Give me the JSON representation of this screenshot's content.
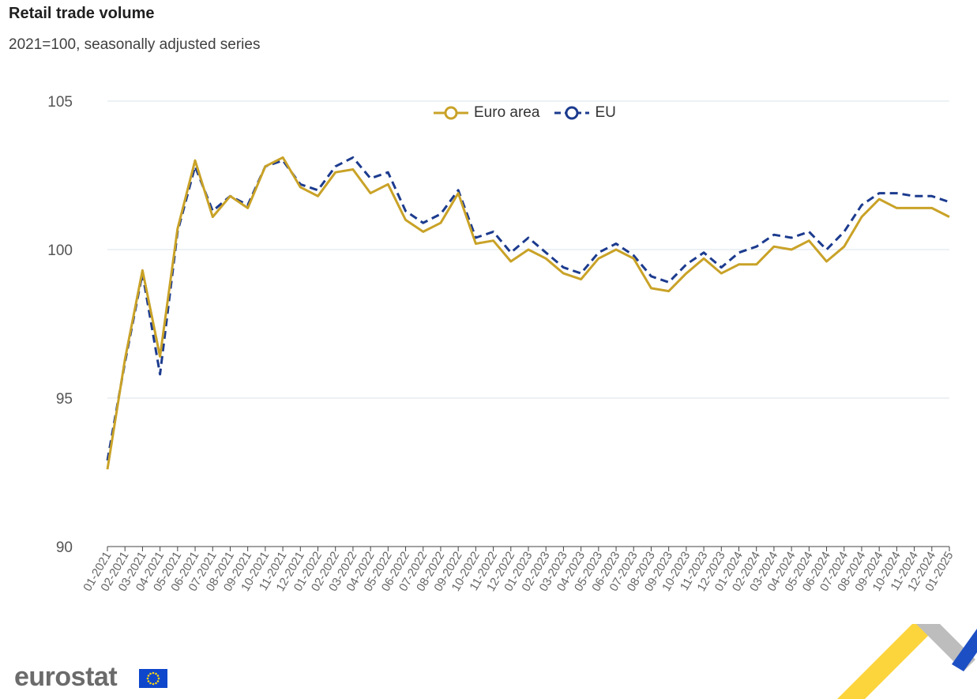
{
  "header": {
    "title": "Retail trade volume",
    "subtitle": "2021=100, seasonally adjusted series"
  },
  "brand": {
    "name": "eurostat"
  },
  "chart_data": {
    "type": "line",
    "title": "Retail trade volume",
    "subtitle": "2021=100, seasonally adjusted series",
    "xlabel": "",
    "ylabel": "",
    "ylim": [
      90,
      105
    ],
    "yticks": [
      "90",
      "95",
      "100",
      "105"
    ],
    "grid": true,
    "legend": "top-center",
    "categories": [
      "01-2021",
      "02-2021",
      "03-2021",
      "04-2021",
      "05-2021",
      "06-2021",
      "07-2021",
      "08-2021",
      "09-2021",
      "10-2021",
      "11-2021",
      "12-2021",
      "01-2022",
      "02-2022",
      "03-2022",
      "04-2022",
      "05-2022",
      "06-2022",
      "07-2022",
      "08-2022",
      "09-2022",
      "10-2022",
      "11-2022",
      "12-2022",
      "01-2023",
      "02-2023",
      "03-2023",
      "04-2023",
      "05-2023",
      "06-2023",
      "07-2023",
      "08-2023",
      "09-2023",
      "10-2023",
      "11-2023",
      "12-2023",
      "01-2024",
      "02-2024",
      "03-2024",
      "04-2024",
      "05-2024",
      "06-2024",
      "07-2024",
      "08-2024",
      "09-2024",
      "10-2024",
      "11-2024",
      "12-2024",
      "01-2025"
    ],
    "series": [
      {
        "name": "Euro area",
        "color": "#c9a227",
        "dash": "solid",
        "values": [
          92.6,
          96.3,
          99.3,
          96.4,
          100.7,
          103.0,
          101.1,
          101.8,
          101.4,
          102.8,
          103.1,
          102.1,
          101.8,
          102.6,
          102.7,
          101.9,
          102.2,
          101.0,
          100.6,
          100.9,
          101.9,
          100.2,
          100.3,
          99.6,
          100.0,
          99.7,
          99.2,
          99.0,
          99.7,
          100.0,
          99.7,
          98.7,
          98.6,
          99.2,
          99.7,
          99.2,
          99.5,
          99.5,
          100.1,
          100.0,
          100.3,
          99.6,
          100.1,
          101.1,
          101.7,
          101.4,
          101.4,
          101.4,
          101.1
        ]
      },
      {
        "name": "EU",
        "color": "#1c3b8e",
        "dash": "dashed",
        "values": [
          92.9,
          96.2,
          99.2,
          95.8,
          100.6,
          102.8,
          101.3,
          101.8,
          101.5,
          102.8,
          103.0,
          102.2,
          102.0,
          102.8,
          103.1,
          102.4,
          102.6,
          101.3,
          100.9,
          101.2,
          102.0,
          100.4,
          100.6,
          99.9,
          100.4,
          99.9,
          99.4,
          99.2,
          99.9,
          100.2,
          99.8,
          99.1,
          98.9,
          99.5,
          99.9,
          99.4,
          99.9,
          100.1,
          100.5,
          100.4,
          100.6,
          100.0,
          100.6,
          101.5,
          101.9,
          101.9,
          101.8,
          101.8,
          101.6
        ]
      }
    ]
  }
}
